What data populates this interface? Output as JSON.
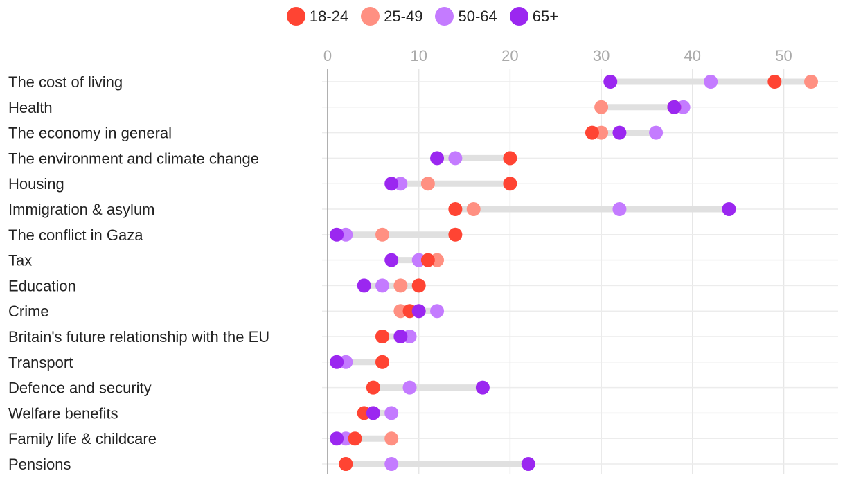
{
  "chart_data": {
    "type": "dot-range",
    "title": "",
    "xlabel": "",
    "ylabel": "",
    "xlim": [
      0,
      53
    ],
    "xticks": [
      0,
      10,
      20,
      30,
      40,
      50
    ],
    "grid": true,
    "legend_position": "top-center",
    "series": [
      {
        "name": "18-24",
        "color": "#FF4433"
      },
      {
        "name": "25-49",
        "color": "#FF9082"
      },
      {
        "name": "50-64",
        "color": "#C47BFF"
      },
      {
        "name": "65+",
        "color": "#9B27F0"
      }
    ],
    "categories": [
      "The cost of living",
      "Health",
      "The economy in general",
      "The environment and climate change",
      "Housing",
      "Immigration & asylum",
      "The conflict in Gaza",
      "Tax",
      "Education",
      "Crime",
      "Britain's future relationship with the EU",
      "Transport",
      "Defence and security",
      "Welfare benefits",
      "Family life & childcare",
      "Pensions"
    ],
    "values": {
      "18-24": [
        49,
        38,
        29,
        20,
        20,
        14,
        14,
        11,
        10,
        9,
        6,
        6,
        5,
        4,
        3,
        2
      ],
      "25-49": [
        53,
        30,
        30,
        20,
        11,
        16,
        6,
        12,
        8,
        8,
        6,
        6,
        5,
        5,
        7,
        2
      ],
      "50-64": [
        42,
        39,
        36,
        14,
        8,
        32,
        2,
        10,
        6,
        12,
        9,
        2,
        9,
        7,
        2,
        7
      ],
      "65+": [
        31,
        38,
        32,
        12,
        7,
        44,
        1,
        7,
        4,
        10,
        8,
        1,
        17,
        5,
        1,
        22
      ]
    }
  }
}
